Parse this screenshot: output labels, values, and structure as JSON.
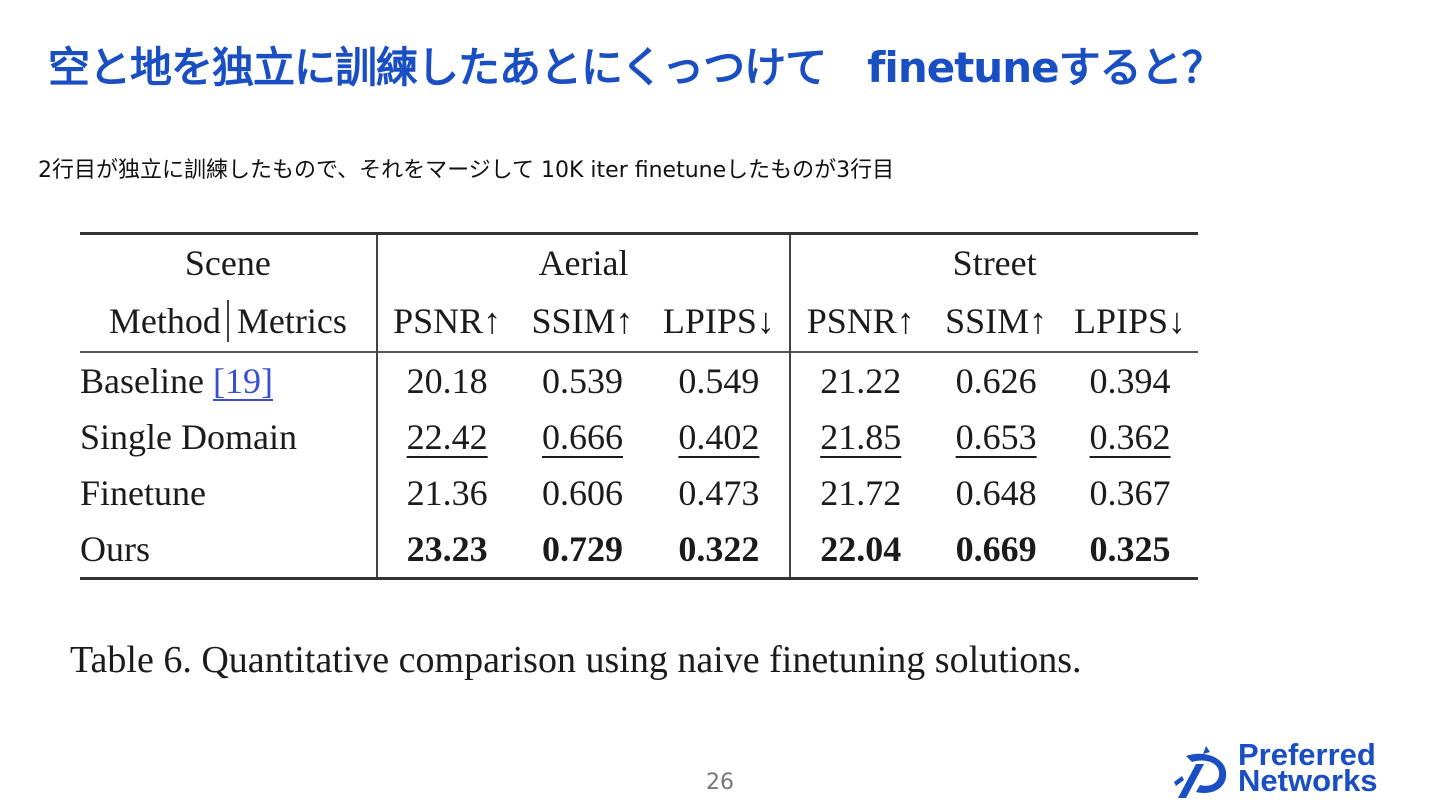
{
  "slide": {
    "title": "空と地を独立に訓練したあとにくっつけて　finetuneすると？",
    "subtitle": "2行目が独立に訓練したもので、それをマージして 10K iter finetuneしたものが3行目",
    "page_number": "26"
  },
  "table": {
    "scene_label": "Scene",
    "method_label": "Method",
    "metrics_label": "Metrics",
    "groups": [
      "Aerial",
      "Street"
    ],
    "metrics": [
      "PSNR↑",
      "SSIM↑",
      "LPIPS↓",
      "PSNR↑",
      "SSIM↑",
      "LPIPS↓"
    ],
    "rows": [
      {
        "method": "Baseline ",
        "ref": "[19]",
        "values": [
          "20.18",
          "0.539",
          "0.549",
          "21.22",
          "0.626",
          "0.394"
        ]
      },
      {
        "method": "Single Domain",
        "ref": "",
        "values": [
          "22.42",
          "0.666",
          "0.402",
          "21.85",
          "0.653",
          "0.362"
        ]
      },
      {
        "method": "Finetune",
        "ref": "",
        "values": [
          "21.36",
          "0.606",
          "0.473",
          "21.72",
          "0.648",
          "0.367"
        ]
      },
      {
        "method": "Ours",
        "ref": "",
        "values": [
          "23.23",
          "0.729",
          "0.322",
          "22.04",
          "0.669",
          "0.325"
        ]
      }
    ],
    "caption": "Table 6.  Quantitative comparison using naive finetuning solutions."
  },
  "logo": {
    "line1": "Preferred",
    "line2": "Networks",
    "mark_icon": "pfn-logo-mark-icon"
  },
  "colors": {
    "title": "#1a4fc4",
    "logo": "#1a4fc4",
    "reference_link": "#3a4fd0"
  }
}
